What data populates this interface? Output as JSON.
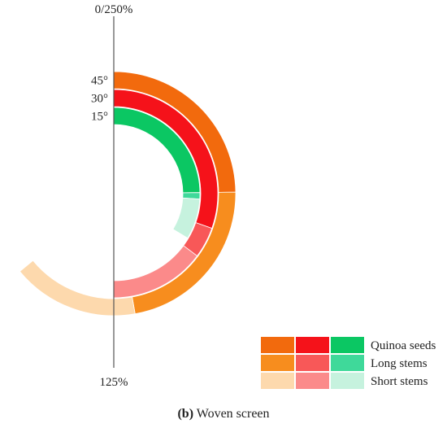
{
  "chart_data": {
    "type": "radial-stacked-bar",
    "axis": {
      "top_label": "0/250%",
      "bottom_label": "125%",
      "max": 250
    },
    "rings": [
      "45°",
      "30°",
      "15°"
    ],
    "components": [
      "Quinoa seeds",
      "Long stems",
      "Short stems"
    ],
    "values": {
      "45°": {
        "Quinoa seeds": 62,
        "Long stems": 56,
        "Short stems": 42
      },
      "30°": {
        "Quinoa seeds": 76,
        "Long stems": 12,
        "Short stems": 37
      },
      "15°": {
        "Quinoa seeds": 62,
        "Long stems": 3,
        "Short stems": 19
      }
    },
    "colors": {
      "45°": {
        "Quinoa seeds": "#f26a0d",
        "Long stems": "#f78d1e",
        "Short stems": "#fdd9ad"
      },
      "30°": {
        "Quinoa seeds": "#f5121a",
        "Long stems": "#f85858",
        "Short stems": "#fb8a8a"
      },
      "15°": {
        "Quinoa seeds": "#0bc763",
        "Long stems": "#3fd99a",
        "Short stems": "#c6f2de"
      }
    },
    "legend": {
      "placement": "bottom-right",
      "entries": [
        "Quinoa seeds",
        "Long stems",
        "Short stems"
      ]
    }
  },
  "caption": {
    "letter": "(b)",
    "text": " Woven screen"
  }
}
